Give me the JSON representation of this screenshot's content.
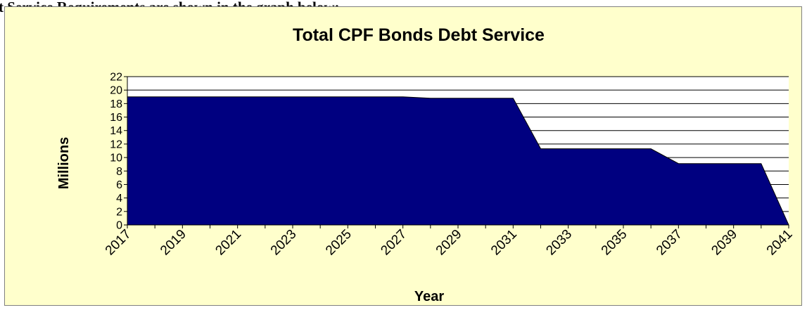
{
  "document": {
    "visible_text": "t Service Requirements are shown in the graph below:"
  },
  "colors": {
    "chart_background": "#ffffcc",
    "plot_background": "#ffffff",
    "area_fill": "#000080",
    "gridline": "#000000"
  },
  "chart_data": {
    "type": "area",
    "title": "Total CPF Bonds Debt Service",
    "xlabel": "Year",
    "ylabel": "Millions",
    "ylim": [
      0,
      22
    ],
    "yticks": [
      0,
      2,
      4,
      6,
      8,
      10,
      12,
      14,
      16,
      18,
      20,
      22
    ],
    "xlim": [
      2017,
      2041
    ],
    "xtick_labels": [
      "2017",
      "2019",
      "2021",
      "2023",
      "2025",
      "2027",
      "2029",
      "2031",
      "2033",
      "2035",
      "2037",
      "2039",
      "2041"
    ],
    "grid": "horizontal",
    "legend": "none",
    "series": [
      {
        "x": [
          2017,
          2018,
          2019,
          2020,
          2021,
          2022,
          2023,
          2024,
          2025,
          2026,
          2027,
          2028,
          2029,
          2030,
          2031,
          2032,
          2033,
          2034,
          2035,
          2036,
          2037,
          2038,
          2039,
          2040,
          2041
        ],
        "values": [
          19.0,
          19.0,
          19.0,
          19.0,
          19.0,
          19.0,
          19.0,
          19.0,
          19.0,
          19.0,
          19.0,
          18.8,
          18.8,
          18.8,
          18.8,
          11.3,
          11.3,
          11.3,
          11.3,
          11.3,
          9.1,
          9.1,
          9.1,
          9.1,
          0
        ]
      }
    ]
  }
}
